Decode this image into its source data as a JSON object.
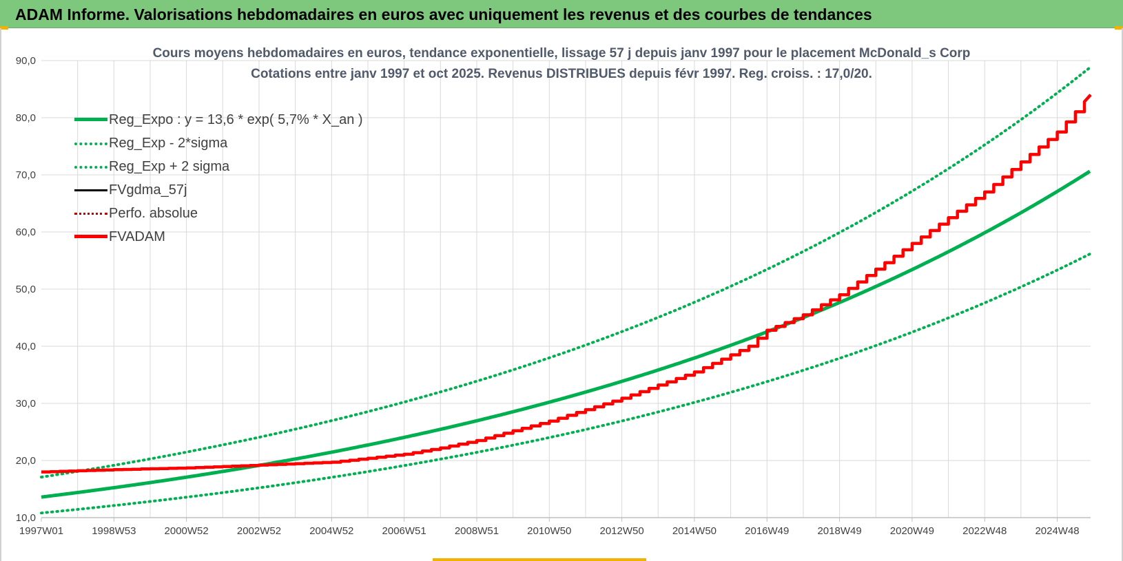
{
  "header": {
    "title": "ADAM Informe. Valorisations hebdomadaires en euros avec uniquement les revenus et des courbes de tendances"
  },
  "colors": {
    "header_bg": "#7dc87d",
    "green": "#00b050",
    "red": "#ff0000",
    "black": "#000000",
    "darkred": "#c00000",
    "grid": "#d9d9d9"
  },
  "chart_data": {
    "type": "line",
    "title_line1": "Cours moyens hebdomadaires en euros, tendance exponentielle, lissage 57 j depuis janv 1997 pour le placement McDonald_s Corp",
    "title_line2": "Cotations entre janv 1997 et oct 2025. Revenus DISTRIBUES depuis févr 1997. Reg. croiss. : 17,0/20.",
    "x_tick_labels": [
      "1997W01",
      "1998W53",
      "2000W52",
      "2002W52",
      "2004W52",
      "2006W51",
      "2008W51",
      "2010W50",
      "2012W50",
      "2014W50",
      "2016W49",
      "2018W49",
      "2020W49",
      "2022W48",
      "2024W48"
    ],
    "x_tick_years": [
      1997.0,
      1999.0,
      2001.0,
      2003.0,
      2005.0,
      2007.0,
      2009.0,
      2011.0,
      2013.0,
      2015.0,
      2017.0,
      2019.0,
      2021.0,
      2023.0,
      2025.0
    ],
    "xlim": [
      1997.0,
      2025.92
    ],
    "ylim": [
      10,
      90
    ],
    "y_ticks": [
      "10,0",
      "20,0",
      "30,0",
      "40,0",
      "50,0",
      "60,0",
      "70,0",
      "80,0",
      "90,0"
    ],
    "y_tick_values": [
      10,
      20,
      30,
      40,
      50,
      60,
      70,
      80,
      90
    ],
    "grid": true,
    "legend_position": "top-left",
    "regression": {
      "a": 13.6,
      "rate": 0.057,
      "sigma_low_factor": 0.795,
      "sigma_high_factor": 1.257
    },
    "series": [
      {
        "name": "Reg_Expo : y = 13,6 * exp( 5,7% *  X_an )",
        "style": "solid-thick",
        "color": "#00b050",
        "kind": "reg"
      },
      {
        "name": "Reg_Exp - 2*sigma",
        "style": "dotted",
        "color": "#00b050",
        "kind": "reg_low"
      },
      {
        "name": "Reg_Exp + 2 sigma",
        "style": "dotted",
        "color": "#00b050",
        "kind": "reg_high"
      },
      {
        "name": "FVgdma_57j",
        "style": "solid",
        "color": "#000000",
        "kind": "fvadam"
      },
      {
        "name": "Perfo. absolue",
        "style": "dotted",
        "color": "#c00000",
        "kind": "fvadam"
      },
      {
        "name": "FVADAM",
        "style": "solid-thick",
        "color": "#ff0000",
        "kind": "fvadam",
        "x": [
          1997.0,
          1999.0,
          2001.0,
          2003.0,
          2005.0,
          2007.0,
          2008.0,
          2009.0,
          2011.0,
          2013.0,
          2015.0,
          2016.5,
          2017.0,
          2018.0,
          2019.0,
          2021.0,
          2023.0,
          2025.0,
          2025.92
        ],
        "y": [
          18.0,
          18.4,
          18.7,
          19.2,
          19.7,
          21.1,
          22.2,
          23.5,
          26.9,
          30.9,
          35.5,
          40.0,
          42.8,
          45.5,
          49.0,
          58.0,
          67.0,
          77.5,
          84.0
        ]
      }
    ]
  }
}
